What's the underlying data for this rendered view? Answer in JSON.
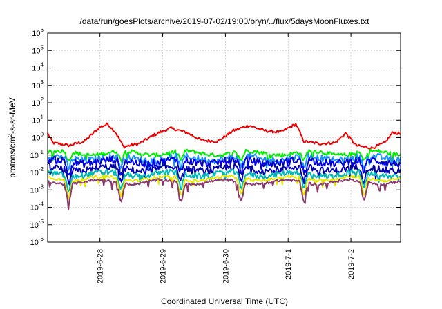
{
  "chart_data": {
    "type": "line",
    "title": "/data/run/goesPlots/archive/2019-07-02/19:00/bryn/../flux/5daysMoonFluxes.txt",
    "xlabel": "Coordinated Universal Time (UTC)",
    "ylabel_parts": {
      "base": "protons/cm",
      "sup": "2",
      "rest": "-s-sr-MeV"
    },
    "y_scale": "log",
    "ylim": [
      1e-06,
      1000000.0
    ],
    "y_ticks": [
      {
        "value": 1000000.0,
        "base": "10",
        "exp": "6"
      },
      {
        "value": 100000.0,
        "base": "10",
        "exp": "5"
      },
      {
        "value": 10000.0,
        "base": "10",
        "exp": "4"
      },
      {
        "value": 1000.0,
        "base": "10",
        "exp": "3"
      },
      {
        "value": 100.0,
        "base": "10",
        "exp": "2"
      },
      {
        "value": 10.0,
        "base": "10",
        "exp": "1"
      },
      {
        "value": 1.0,
        "base": "10",
        "exp": "0"
      },
      {
        "value": 0.1,
        "base": "10",
        "exp": "-1"
      },
      {
        "value": 0.01,
        "base": "10",
        "exp": "-2"
      },
      {
        "value": 0.001,
        "base": "10",
        "exp": "-3"
      },
      {
        "value": 0.0001,
        "base": "10",
        "exp": "-4"
      },
      {
        "value": 1e-05,
        "base": "10",
        "exp": "-5"
      },
      {
        "value": 1e-06,
        "base": "10",
        "exp": "-6"
      }
    ],
    "xlim": [
      "2019-06-27T04:00",
      "2019-07-02T19:00"
    ],
    "x_ticks": [
      {
        "value": "2019-06-28T00:00",
        "label": "2019-6-28"
      },
      {
        "value": "2019-06-29T00:00",
        "label": "2019-6-29"
      },
      {
        "value": "2019-06-30T00:00",
        "label": "2019-6-30"
      },
      {
        "value": "2019-07-01T00:00",
        "label": "2019-7-1"
      },
      {
        "value": "2019-07-02T00:00",
        "label": "2019-7-2"
      }
    ],
    "grid": true,
    "series": [
      {
        "color": "#ee0000",
        "level": 1.2,
        "noise": 0.08,
        "anchors": [
          [
            "2019-06-27T04:00",
            1.8
          ],
          [
            "2019-06-27T06:00",
            0.5
          ],
          [
            "2019-06-27T12:00",
            0.35
          ],
          [
            "2019-06-27T18:00",
            0.6
          ],
          [
            "2019-06-28T00:00",
            4.0
          ],
          [
            "2019-06-28T03:00",
            6.0
          ],
          [
            "2019-06-28T06:00",
            2.0
          ],
          [
            "2019-06-28T09:00",
            0.3
          ],
          [
            "2019-06-28T15:00",
            0.45
          ],
          [
            "2019-06-28T21:00",
            1.5
          ],
          [
            "2019-06-29T03:00",
            3.5
          ],
          [
            "2019-06-29T09:00",
            2.0
          ],
          [
            "2019-06-29T15:00",
            0.7
          ],
          [
            "2019-06-29T21:00",
            0.6
          ],
          [
            "2019-06-30T03:00",
            2.5
          ],
          [
            "2019-06-30T09:00",
            5.0
          ],
          [
            "2019-06-30T15:00",
            2.5
          ],
          [
            "2019-06-30T21:00",
            2.0
          ],
          [
            "2019-07-01T00:00",
            3.5
          ],
          [
            "2019-07-01T03:00",
            6.0
          ],
          [
            "2019-07-01T06:00",
            0.6
          ],
          [
            "2019-07-01T12:00",
            0.45
          ],
          [
            "2019-07-01T18:00",
            0.5
          ],
          [
            "2019-07-01T22:00",
            1.8
          ],
          [
            "2019-07-02T02:00",
            0.35
          ],
          [
            "2019-07-02T08:00",
            0.25
          ],
          [
            "2019-07-02T13:00",
            0.5
          ],
          [
            "2019-07-02T16:00",
            2.0
          ],
          [
            "2019-07-02T19:00",
            1.6
          ]
        ]
      },
      {
        "color": "#00ee00",
        "level": 0.13,
        "noise": 0.11,
        "anchors": []
      },
      {
        "color": "#1a90ff",
        "level": 0.065,
        "noise": 0.2,
        "anchors": []
      },
      {
        "color": "#0000dd",
        "level": 0.042,
        "noise": 0.22,
        "anchors": []
      },
      {
        "color": "#0000b0",
        "level": 0.016,
        "noise": 0.2,
        "anchors": []
      },
      {
        "color": "#00b8b8",
        "level": 0.008,
        "noise": 0.16,
        "anchors": []
      },
      {
        "color": "#e6e600",
        "level": 0.0045,
        "noise": 0.08,
        "anchors": []
      },
      {
        "color": "#8b3a6e",
        "level": 0.0028,
        "noise": 0.07,
        "anchors": []
      }
    ]
  }
}
